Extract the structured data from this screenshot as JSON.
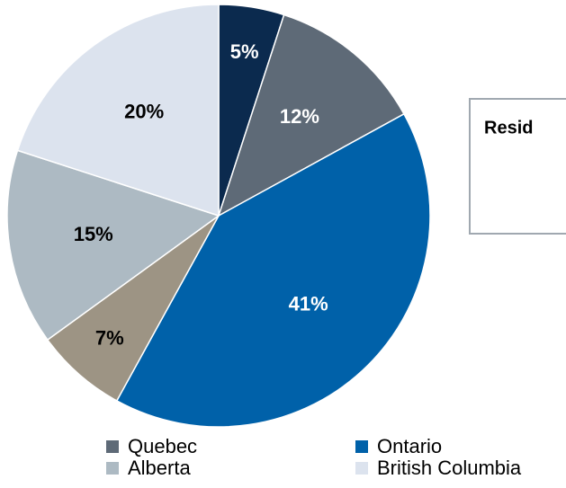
{
  "chart_data": {
    "type": "pie",
    "categories": [
      null,
      "Quebec",
      "Ontario",
      null,
      "Alberta",
      "British Columbia"
    ],
    "values": [
      5,
      12,
      41,
      7,
      15,
      20
    ],
    "value_labels": [
      "5%",
      "12%",
      "41%",
      "7%",
      "15%",
      "20%"
    ],
    "colors": [
      "#0b2a4e",
      "#5e6a77",
      "#0061a9",
      "#9d9484",
      "#adbac3",
      "#dce3ee"
    ],
    "annotation": "Resid"
  }
}
